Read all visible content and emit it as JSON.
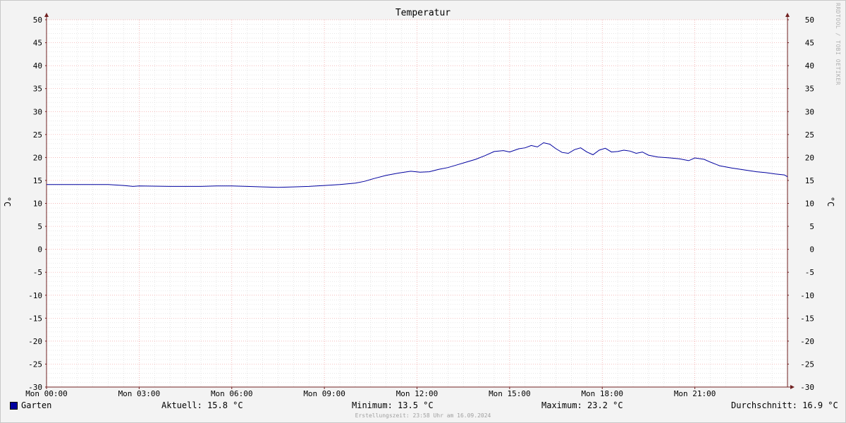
{
  "chart_data": {
    "type": "line",
    "title": "Temperatur",
    "ylabel": "°C",
    "ylim": [
      -30,
      50
    ],
    "y_ticks": [
      50,
      45,
      40,
      35,
      30,
      25,
      20,
      15,
      10,
      5,
      0,
      -5,
      -10,
      -15,
      -20,
      -25,
      -30
    ],
    "x_ticks": [
      "Mon 00:00",
      "Mon 03:00",
      "Mon 06:00",
      "Mon 09:00",
      "Mon 12:00",
      "Mon 15:00",
      "Mon 18:00",
      "Mon 21:00"
    ],
    "x_unit": "hours",
    "xlim": [
      0,
      24
    ],
    "grid": true,
    "series": [
      {
        "name": "Garten",
        "color": "#00009f",
        "points": [
          [
            0.0,
            14.1
          ],
          [
            1.0,
            14.1
          ],
          [
            2.0,
            14.1
          ],
          [
            2.5,
            13.9
          ],
          [
            2.8,
            13.7
          ],
          [
            3.0,
            13.8
          ],
          [
            4.0,
            13.7
          ],
          [
            5.0,
            13.7
          ],
          [
            5.5,
            13.8
          ],
          [
            6.0,
            13.8
          ],
          [
            6.5,
            13.7
          ],
          [
            7.0,
            13.6
          ],
          [
            7.5,
            13.5
          ],
          [
            8.0,
            13.6
          ],
          [
            8.5,
            13.7
          ],
          [
            9.0,
            13.9
          ],
          [
            9.5,
            14.1
          ],
          [
            10.0,
            14.4
          ],
          [
            10.3,
            14.8
          ],
          [
            10.6,
            15.4
          ],
          [
            11.0,
            16.1
          ],
          [
            11.4,
            16.6
          ],
          [
            11.8,
            17.0
          ],
          [
            12.1,
            16.8
          ],
          [
            12.4,
            16.9
          ],
          [
            12.7,
            17.4
          ],
          [
            13.0,
            17.8
          ],
          [
            13.3,
            18.4
          ],
          [
            13.6,
            19.0
          ],
          [
            13.9,
            19.6
          ],
          [
            14.2,
            20.4
          ],
          [
            14.5,
            21.3
          ],
          [
            14.8,
            21.5
          ],
          [
            15.0,
            21.2
          ],
          [
            15.3,
            21.9
          ],
          [
            15.5,
            22.1
          ],
          [
            15.7,
            22.6
          ],
          [
            15.9,
            22.3
          ],
          [
            16.1,
            23.2
          ],
          [
            16.3,
            22.9
          ],
          [
            16.5,
            21.9
          ],
          [
            16.7,
            21.1
          ],
          [
            16.9,
            20.9
          ],
          [
            17.1,
            21.7
          ],
          [
            17.3,
            22.1
          ],
          [
            17.5,
            21.2
          ],
          [
            17.7,
            20.6
          ],
          [
            17.9,
            21.6
          ],
          [
            18.1,
            22.0
          ],
          [
            18.3,
            21.2
          ],
          [
            18.5,
            21.3
          ],
          [
            18.7,
            21.6
          ],
          [
            18.9,
            21.4
          ],
          [
            19.1,
            20.9
          ],
          [
            19.3,
            21.2
          ],
          [
            19.5,
            20.5
          ],
          [
            19.8,
            20.1
          ],
          [
            20.2,
            19.9
          ],
          [
            20.5,
            19.7
          ],
          [
            20.8,
            19.3
          ],
          [
            21.0,
            19.9
          ],
          [
            21.3,
            19.6
          ],
          [
            21.5,
            19.0
          ],
          [
            21.8,
            18.2
          ],
          [
            22.2,
            17.7
          ],
          [
            22.6,
            17.3
          ],
          [
            23.0,
            16.9
          ],
          [
            23.3,
            16.7
          ],
          [
            23.6,
            16.4
          ],
          [
            23.9,
            16.2
          ],
          [
            24.0,
            15.8
          ]
        ]
      }
    ]
  },
  "legend": {
    "series_name": "Garten",
    "current": "Aktuell: 15.8 °C",
    "minimum": "Minimum: 13.5 °C",
    "maximum": "Maximum: 23.2 °C",
    "average": "Durchschnitt: 16.9 °C"
  },
  "footer": "Erstellungszeit: 23:58 Uhr am 16.09.2024",
  "watermark": "RRDTOOL / TOBI OETIKER",
  "colors": {
    "line": "#00009f",
    "major_grid": "#f0a0a0",
    "minor_grid": "#d8d8d8",
    "axis": "#702020",
    "background": "#ffffff"
  }
}
